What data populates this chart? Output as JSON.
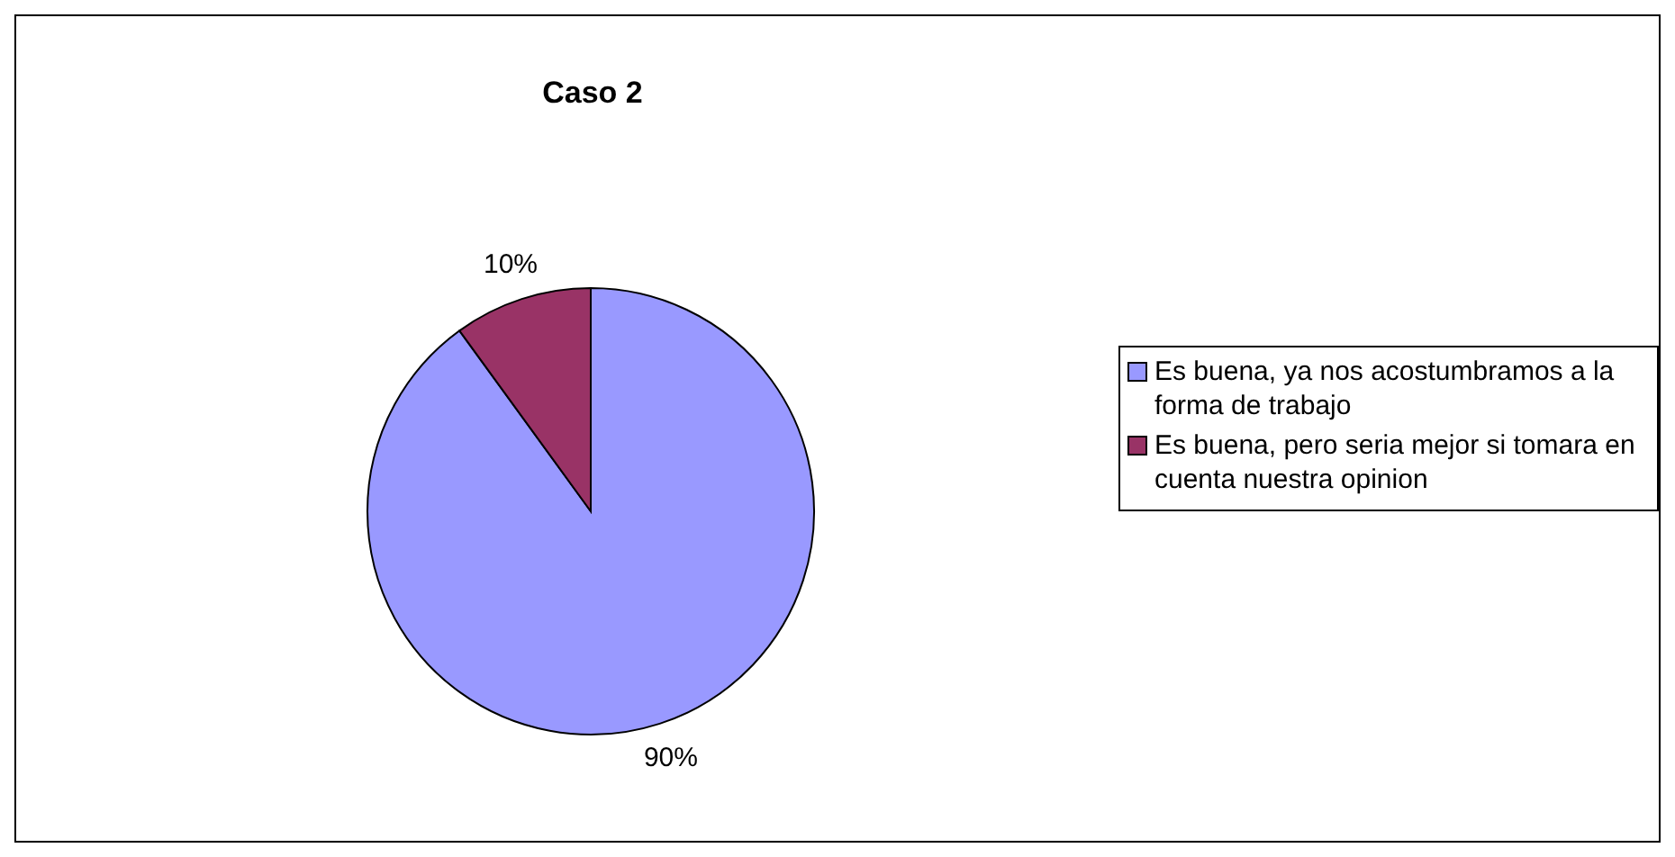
{
  "chart_data": {
    "type": "pie",
    "title": "Caso 2",
    "categories": [
      "Es buena, ya nos acostumbramos a la forma de trabajo",
      "Es buena, pero seria mejor si tomara en cuenta nuestra opinion"
    ],
    "values": [
      90,
      10
    ],
    "colors": [
      "#9999ff",
      "#993366"
    ],
    "value_labels": [
      "90%",
      "10%"
    ],
    "legend": "right"
  }
}
